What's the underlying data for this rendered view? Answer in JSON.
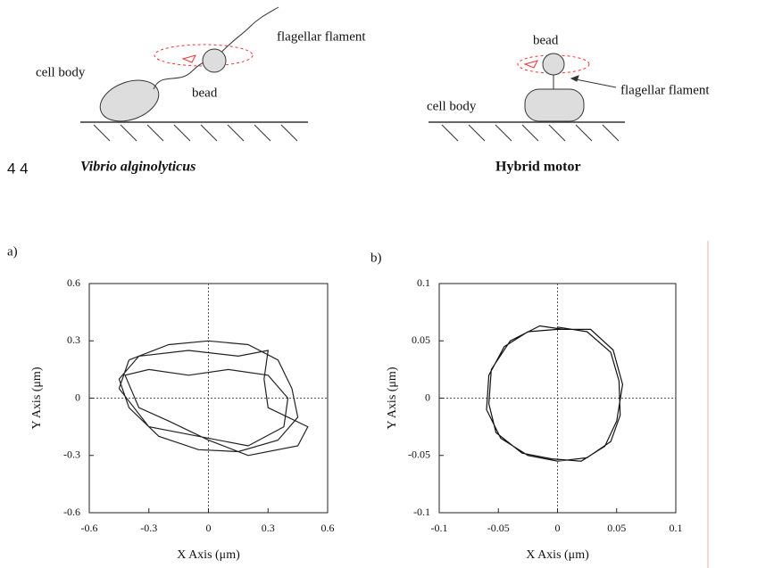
{
  "figure_label": "4 4",
  "diagrams": [
    {
      "labels": [
        "flagellar flament",
        "cell body",
        "bead"
      ],
      "caption": "Vibrio alginolyticus"
    },
    {
      "labels": [
        "bead",
        "cell body",
        "flagellar flament"
      ],
      "caption": "Hybrid motor"
    }
  ],
  "chart_data": [
    {
      "type": "line",
      "panel": "a)",
      "xlabel": "X Axis (μm)",
      "ylabel": "Y Axis (μm)",
      "xlim": [
        -0.6,
        0.6
      ],
      "ylim": [
        -0.6,
        0.6
      ],
      "xticks": [
        -0.6,
        -0.3,
        0,
        0.3,
        0.6
      ],
      "yticks": [
        -0.6,
        -0.3,
        0,
        0.3,
        0.6
      ],
      "crosshair": true,
      "x": [
        -0.4,
        -0.2,
        0,
        0.2,
        0.35,
        0.42,
        0.45,
        0.35,
        0.15,
        -0.05,
        -0.25,
        -0.4,
        -0.45,
        -0.35,
        -0.1,
        0.15,
        0.3,
        0.28,
        0.3,
        0.5,
        0.45,
        0.2,
        0,
        -0.2,
        -0.35,
        -0.42,
        -0.3,
        -0.1,
        0.1,
        0.3,
        0.4,
        0.38,
        0.2,
        -0.05,
        -0.3,
        -0.45,
        -0.4
      ],
      "series": [
        {
          "color": "#222222",
          "values": [
            0.2,
            0.28,
            0.3,
            0.28,
            0.2,
            0.05,
            -0.1,
            -0.22,
            -0.28,
            -0.27,
            -0.2,
            -0.05,
            0.1,
            0.22,
            0.25,
            0.22,
            0.25,
            0.1,
            -0.05,
            -0.15,
            -0.25,
            -0.3,
            -0.22,
            -0.12,
            -0.05,
            0.12,
            0.15,
            0.12,
            0.15,
            0.12,
            0,
            -0.15,
            -0.25,
            -0.2,
            -0.15,
            0.05,
            0.2
          ]
        }
      ]
    },
    {
      "type": "line",
      "panel": "b)",
      "xlabel": "X Axis (μm)",
      "ylabel": "Y Axis (μm)",
      "xlim": [
        -0.1,
        0.1
      ],
      "ylim": [
        -0.1,
        0.1
      ],
      "xticks": [
        -0.1,
        -0.05,
        0,
        0.05,
        0.1
      ],
      "yticks": [
        -0.1,
        -0.05,
        0,
        0.05,
        0.1
      ],
      "crosshair": true,
      "x": [
        0,
        0.025,
        0.045,
        0.052,
        0.053,
        0.045,
        0.025,
        0,
        -0.025,
        -0.048,
        -0.06,
        -0.058,
        -0.045,
        -0.025,
        0,
        0.028,
        0.047,
        0.055,
        0.05,
        0.04,
        0.02,
        -0.005,
        -0.03,
        -0.052,
        -0.058,
        -0.056,
        -0.04,
        -0.015,
        0.005
      ],
      "series": [
        {
          "color": "#111111",
          "values": [
            0.062,
            0.058,
            0.04,
            0.015,
            -0.015,
            -0.038,
            -0.052,
            -0.055,
            -0.05,
            -0.035,
            -0.01,
            0.02,
            0.045,
            0.058,
            0.06,
            0.06,
            0.042,
            0.012,
            -0.02,
            -0.042,
            -0.055,
            -0.053,
            -0.048,
            -0.03,
            -0.005,
            0.025,
            0.05,
            0.063,
            0.06
          ]
        }
      ]
    }
  ]
}
